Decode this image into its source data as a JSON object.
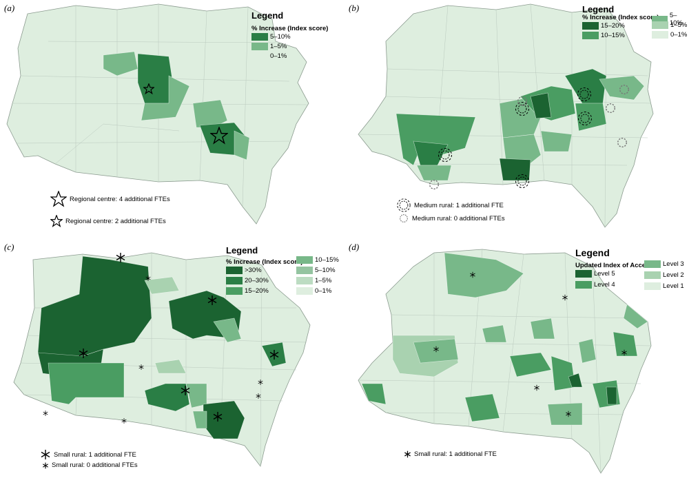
{
  "colors": {
    "base": "#deeedf",
    "l1": "#a9d2b0",
    "l2": "#78b889",
    "l3": "#4a9d62",
    "l4": "#2a7e45",
    "l5": "#1b6331",
    "border": "#8a9a8e",
    "inner": "#b9c8bd"
  },
  "panels": [
    {
      "label": "(a)",
      "legend": {
        "title": "Legend",
        "subtitle": "% Increase (Index score)",
        "items": [
          {
            "label": "5–10%",
            "color": "#2a7e45"
          },
          {
            "label": "1–5%",
            "color": "#78b889"
          },
          {
            "label": "0–1%",
            "color": "#deeedf"
          }
        ]
      },
      "symbols": [
        {
          "label": "Regional centre: 4 additional FTEs",
          "icon": "star-large-icon"
        },
        {
          "label": "Regional centre: 2 additional FTEs",
          "icon": "star-small-icon"
        }
      ]
    },
    {
      "label": "(b)",
      "legend": {
        "title": "Legend",
        "subtitle": "% Increase (Index score)",
        "items": [
          {
            "label": "15–20%",
            "color": "#1b6331"
          },
          {
            "label": "10–15%",
            "color": "#4a9d62"
          },
          {
            "label": "5–10%",
            "color": "#78b889"
          },
          {
            "label": "1–5%",
            "color": "#a9d2b0"
          },
          {
            "label": "0–1%",
            "color": "#deeedf"
          }
        ]
      },
      "symbols": [
        {
          "label": "Medium rural: 1 additional FTE",
          "icon": "burst-large-icon"
        },
        {
          "label": "Medium rural: 0 additional FTEs",
          "icon": "burst-small-icon"
        }
      ]
    },
    {
      "label": "(c)",
      "legend": {
        "title": "Legend",
        "subtitle": "% Increase (Index score)",
        "items": [
          {
            "label": ">30%",
            "color": "#1b6331"
          },
          {
            "label": "20–30%",
            "color": "#2a7e45"
          },
          {
            "label": "15–20%",
            "color": "#4a9d62"
          },
          {
            "label": "10–15%",
            "color": "#78b889"
          },
          {
            "label": "5–10%",
            "color": "#94c4a0"
          },
          {
            "label": "1–5%",
            "color": "#bcdcc2"
          },
          {
            "label": "0–1%",
            "color": "#deeedf"
          }
        ]
      },
      "symbols": [
        {
          "label": "Small rural: 1 additional FTE",
          "icon": "asterisk-large-icon"
        },
        {
          "label": "Small rural: 0 additional FTEs",
          "icon": "asterisk-small-icon"
        }
      ]
    },
    {
      "label": "(d)",
      "legend": {
        "title": "Legend",
        "subtitle": "Updated Index of Access",
        "items": [
          {
            "label": "Level 5",
            "color": "#1b6331"
          },
          {
            "label": "Level 4",
            "color": "#4a9d62"
          },
          {
            "label": "Level 3",
            "color": "#78b889"
          },
          {
            "label": "Level 2",
            "color": "#a9d2b0"
          },
          {
            "label": "Level 1",
            "color": "#deeedf"
          }
        ]
      },
      "symbols": [
        {
          "label": "Small rural: 1 additional FTE",
          "icon": "asterisk-small-icon"
        }
      ]
    }
  ]
}
